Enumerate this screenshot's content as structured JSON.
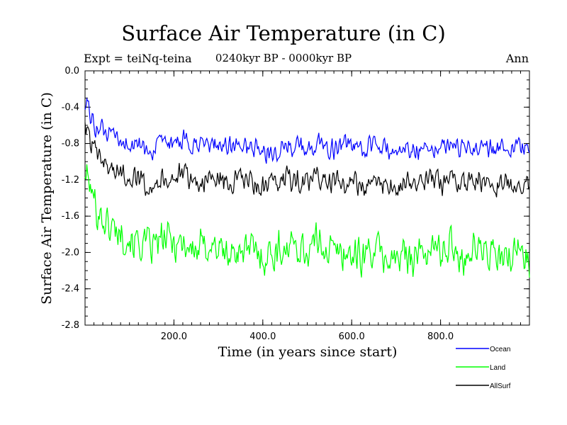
{
  "header": {
    "title": "Surface Air Temperature (in C)",
    "subtitle": "0240kyr BP - 0000kyr BP",
    "expt": "Expt = teiNq-teina",
    "period": "Ann"
  },
  "chart_data": {
    "type": "line",
    "title": "Surface Air Temperature (in C)",
    "xlabel": "Time (in years since start)",
    "ylabel": "Surface Air Temperature (in C)",
    "xlim": [
      0,
      1000
    ],
    "ylim": [
      -2.8,
      0.0
    ],
    "x_ticks": [
      200,
      400,
      600,
      800
    ],
    "x_tick_labels": [
      "200.0",
      "400.0",
      "600.0",
      "800.0"
    ],
    "y_ticks": [
      0.0,
      -0.4,
      -0.8,
      -1.2,
      -1.6,
      -2.0,
      -2.4,
      -2.8
    ],
    "y_tick_labels": [
      "0.0",
      "-0.4",
      "-0.8",
      "-1.2",
      "-1.6",
      "-2.0",
      "-2.4",
      "-2.8"
    ],
    "legend_position": "bottom-right outside",
    "series": [
      {
        "name": "Ocean",
        "color": "#0000ff",
        "x": [
          0,
          25,
          50,
          75,
          100,
          125,
          150,
          175,
          200,
          225,
          250,
          275,
          300,
          325,
          350,
          375,
          400,
          425,
          450,
          475,
          500,
          525,
          550,
          575,
          600,
          625,
          650,
          675,
          700,
          725,
          750,
          775,
          800,
          825,
          850,
          875,
          900,
          925,
          950,
          975,
          1000
        ],
        "values": [
          -0.35,
          -0.62,
          -0.7,
          -0.78,
          -0.8,
          -0.85,
          -0.88,
          -0.82,
          -0.8,
          -0.78,
          -0.85,
          -0.82,
          -0.8,
          -0.84,
          -0.82,
          -0.85,
          -0.9,
          -0.88,
          -0.83,
          -0.82,
          -0.88,
          -0.78,
          -0.86,
          -0.84,
          -0.83,
          -0.88,
          -0.82,
          -0.85,
          -0.9,
          -0.83,
          -0.86,
          -0.82,
          -0.84,
          -0.8,
          -0.88,
          -0.83,
          -0.84,
          -0.86,
          -0.82,
          -0.85,
          -0.9
        ],
        "noise_amplitude": 0.12
      },
      {
        "name": "Land",
        "color": "#00ff00",
        "x": [
          0,
          25,
          50,
          75,
          100,
          125,
          150,
          175,
          200,
          225,
          250,
          275,
          300,
          325,
          350,
          375,
          400,
          425,
          450,
          475,
          500,
          525,
          550,
          575,
          600,
          625,
          650,
          675,
          700,
          725,
          750,
          775,
          800,
          825,
          850,
          875,
          900,
          925,
          950,
          975,
          1000
        ],
        "values": [
          -1.1,
          -1.5,
          -1.7,
          -1.75,
          -1.85,
          -1.9,
          -1.95,
          -1.85,
          -1.88,
          -1.9,
          -2.0,
          -1.9,
          -1.95,
          -2.05,
          -1.95,
          -1.98,
          -2.05,
          -2.0,
          -1.95,
          -1.92,
          -2.0,
          -1.85,
          -1.98,
          -2.0,
          -2.02,
          -2.05,
          -1.95,
          -2.05,
          -2.1,
          -2.0,
          -2.05,
          -1.95,
          -1.98,
          -1.92,
          -2.05,
          -1.95,
          -1.98,
          -2.05,
          -2.1,
          -1.95,
          -2.05
        ],
        "noise_amplitude": 0.22
      },
      {
        "name": "AllSurf",
        "color": "#000000",
        "x": [
          0,
          25,
          50,
          75,
          100,
          125,
          150,
          175,
          200,
          225,
          250,
          275,
          300,
          325,
          350,
          375,
          400,
          425,
          450,
          475,
          500,
          525,
          550,
          575,
          600,
          625,
          650,
          675,
          700,
          725,
          750,
          775,
          800,
          825,
          850,
          875,
          900,
          925,
          950,
          975,
          1000
        ],
        "values": [
          -0.6,
          -0.95,
          -1.05,
          -1.12,
          -1.15,
          -1.2,
          -1.25,
          -1.18,
          -1.17,
          -1.16,
          -1.23,
          -1.2,
          -1.18,
          -1.24,
          -1.2,
          -1.23,
          -1.3,
          -1.26,
          -1.2,
          -1.19,
          -1.27,
          -1.14,
          -1.24,
          -1.24,
          -1.23,
          -1.28,
          -1.2,
          -1.25,
          -1.3,
          -1.22,
          -1.26,
          -1.2,
          -1.23,
          -1.18,
          -1.27,
          -1.2,
          -1.22,
          -1.26,
          -1.24,
          -1.22,
          -1.3
        ],
        "noise_amplitude": 0.14
      }
    ]
  }
}
